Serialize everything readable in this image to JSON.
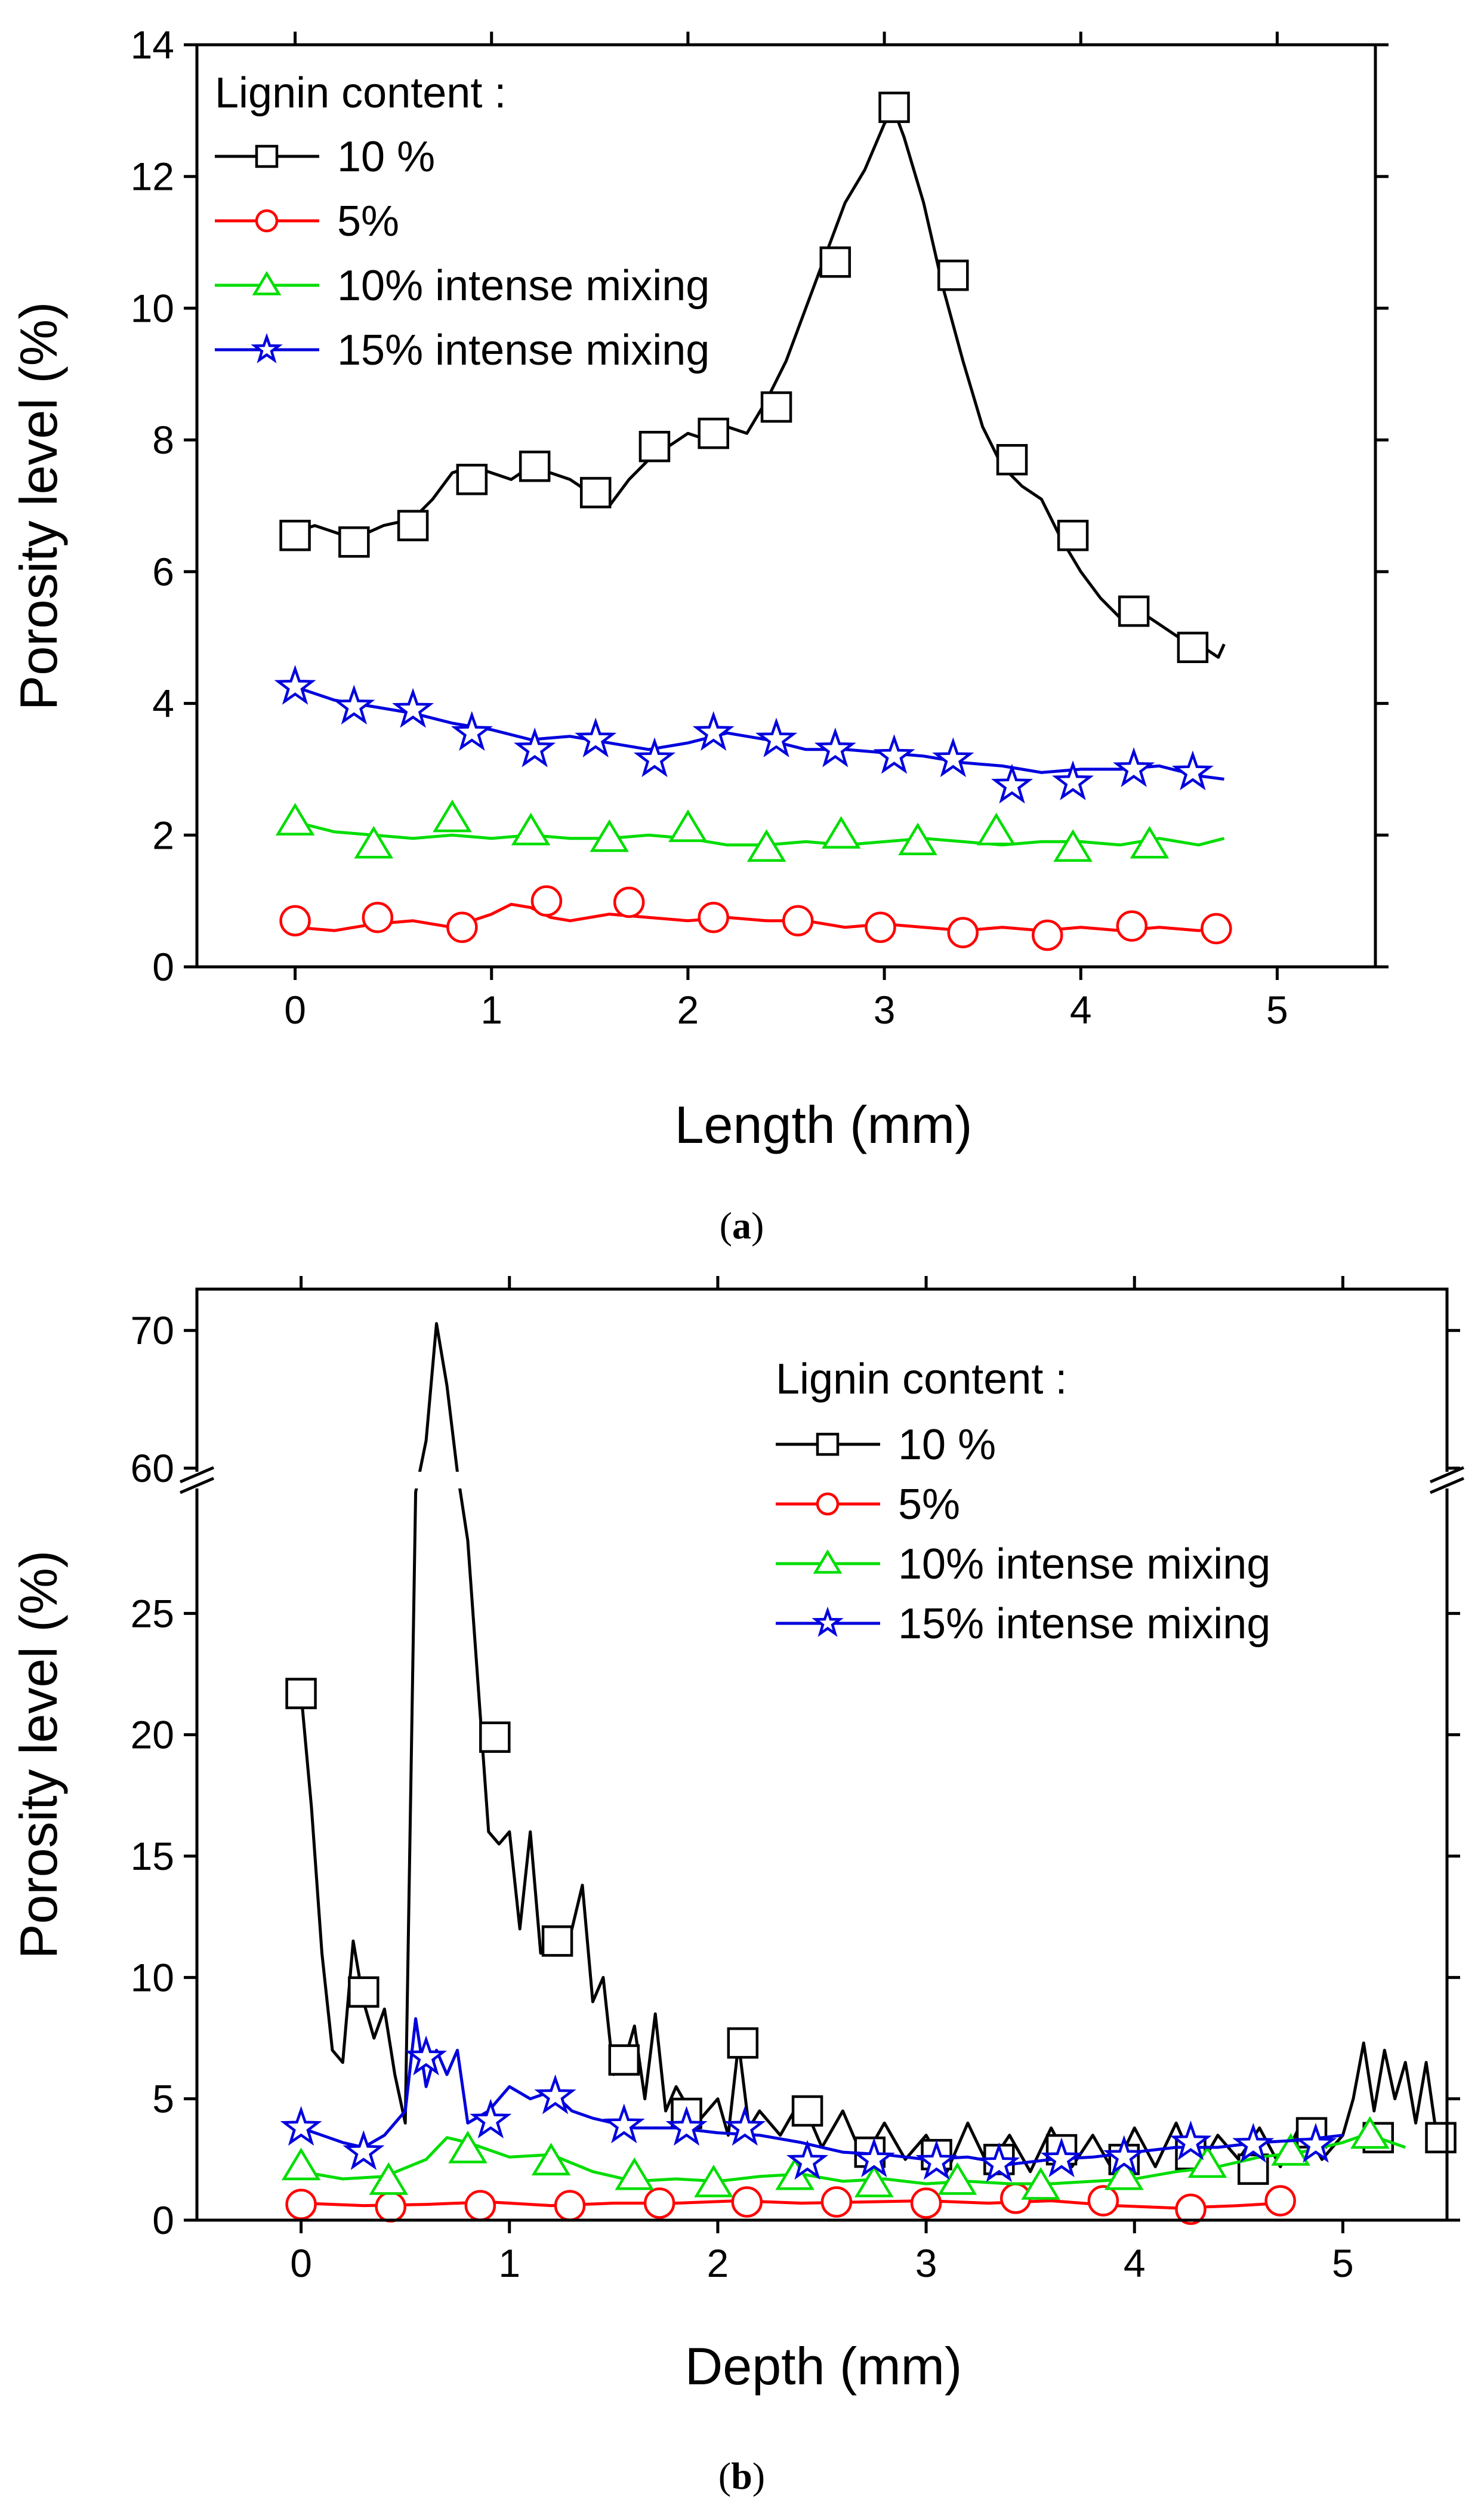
{
  "chart_data": [
    {
      "type": "line",
      "panel_label": "(a)",
      "caption_open": "(",
      "caption_letter": "a",
      "caption_close": ")",
      "xlabel": "Length (mm)",
      "ylabel": "Porosity level (%)",
      "xlim": [
        -0.5,
        5.5
      ],
      "ylim": [
        0,
        14
      ],
      "xticks": [
        0,
        1,
        2,
        3,
        4,
        5
      ],
      "yticks": [
        0,
        2,
        4,
        6,
        8,
        10,
        12,
        14
      ],
      "legend_title": "Lignin content :",
      "legend_position": "top-left",
      "series": [
        {
          "name": "10 %",
          "color": "#000000",
          "marker": "square",
          "x": [
            0,
            0.1,
            0.2,
            0.3,
            0.45,
            0.6,
            0.7,
            0.8,
            0.9,
            1.0,
            1.1,
            1.2,
            1.3,
            1.4,
            1.5,
            1.6,
            1.7,
            1.8,
            1.9,
            2.0,
            2.1,
            2.2,
            2.3,
            2.4,
            2.5,
            2.6,
            2.7,
            2.8,
            2.9,
            3.0,
            3.05,
            3.1,
            3.2,
            3.3,
            3.4,
            3.5,
            3.6,
            3.7,
            3.8,
            3.9,
            4.0,
            4.1,
            4.2,
            4.3,
            4.4,
            4.5,
            4.6,
            4.7,
            4.73
          ],
          "y": [
            6.6,
            6.7,
            6.6,
            6.5,
            6.7,
            6.8,
            7.1,
            7.5,
            7.6,
            7.5,
            7.4,
            7.6,
            7.5,
            7.4,
            7.2,
            7.0,
            7.4,
            7.7,
            7.9,
            8.1,
            8.0,
            8.2,
            8.1,
            8.6,
            9.2,
            10.0,
            10.8,
            11.6,
            12.1,
            12.8,
            13.0,
            12.6,
            11.6,
            10.3,
            9.2,
            8.2,
            7.6,
            7.3,
            7.1,
            6.5,
            6.0,
            5.6,
            5.3,
            5.4,
            5.2,
            5.0,
            4.9,
            4.7,
            4.9
          ],
          "marker_x": [
            0,
            0.3,
            0.6,
            0.9,
            1.22,
            1.53,
            1.83,
            2.13,
            2.45,
            2.75,
            3.05,
            3.35,
            3.65,
            3.96,
            4.27,
            4.57
          ],
          "marker_y": [
            6.55,
            6.45,
            6.7,
            7.4,
            7.6,
            7.2,
            7.9,
            8.1,
            8.5,
            10.7,
            13.05,
            10.5,
            7.7,
            6.55,
            5.4,
            4.85
          ]
        },
        {
          "name": "5%",
          "color": "#ff0000",
          "marker": "circle",
          "x": [
            0,
            0.2,
            0.4,
            0.6,
            0.8,
            1.0,
            1.1,
            1.2,
            1.3,
            1.4,
            1.6,
            1.8,
            2.0,
            2.2,
            2.4,
            2.6,
            2.8,
            3.0,
            3.2,
            3.4,
            3.6,
            3.8,
            4.0,
            4.2,
            4.4,
            4.6,
            4.73
          ],
          "y": [
            0.6,
            0.55,
            0.65,
            0.7,
            0.6,
            0.8,
            0.95,
            0.9,
            0.75,
            0.7,
            0.8,
            0.75,
            0.7,
            0.75,
            0.7,
            0.7,
            0.6,
            0.65,
            0.6,
            0.55,
            0.6,
            0.55,
            0.6,
            0.55,
            0.6,
            0.55,
            0.6
          ],
          "marker_x": [
            0,
            0.42,
            0.85,
            1.28,
            1.7,
            2.13,
            2.56,
            2.98,
            3.4,
            3.83,
            4.26,
            4.69
          ],
          "marker_y": [
            0.7,
            0.75,
            0.6,
            1.0,
            0.98,
            0.75,
            0.7,
            0.6,
            0.52,
            0.48,
            0.62,
            0.58
          ]
        },
        {
          "name": "10% intense mixing",
          "color": "#00dd00",
          "marker": "triangle",
          "x": [
            0,
            0.2,
            0.4,
            0.6,
            0.8,
            1.0,
            1.2,
            1.4,
            1.6,
            1.8,
            2.0,
            2.2,
            2.4,
            2.6,
            2.8,
            3.0,
            3.2,
            3.4,
            3.6,
            3.8,
            4.0,
            4.2,
            4.4,
            4.6,
            4.73
          ],
          "y": [
            2.2,
            2.05,
            2.0,
            1.95,
            2.0,
            1.95,
            2.0,
            1.95,
            1.95,
            2.0,
            1.95,
            1.85,
            1.85,
            1.9,
            1.85,
            1.9,
            1.95,
            1.9,
            1.85,
            1.9,
            1.9,
            1.85,
            1.95,
            1.85,
            1.95
          ],
          "marker_x": [
            0,
            0.4,
            0.8,
            1.2,
            1.6,
            2.0,
            2.4,
            2.78,
            3.17,
            3.57,
            3.96,
            4.35
          ],
          "marker_y": [
            2.2,
            1.85,
            2.25,
            2.05,
            1.95,
            2.1,
            1.8,
            2.0,
            1.9,
            2.05,
            1.8,
            1.85
          ]
        },
        {
          "name": "15% intense mixing",
          "color": "#0000dd",
          "marker": "star",
          "x": [
            0,
            0.2,
            0.4,
            0.6,
            0.8,
            1.0,
            1.2,
            1.4,
            1.6,
            1.8,
            2.0,
            2.2,
            2.4,
            2.6,
            2.8,
            3.0,
            3.2,
            3.4,
            3.6,
            3.8,
            4.0,
            4.2,
            4.4,
            4.6,
            4.73
          ],
          "y": [
            4.25,
            4.05,
            3.95,
            3.85,
            3.7,
            3.6,
            3.45,
            3.5,
            3.4,
            3.3,
            3.4,
            3.55,
            3.45,
            3.3,
            3.3,
            3.25,
            3.2,
            3.1,
            3.05,
            2.95,
            3.0,
            3.0,
            3.05,
            2.9,
            2.85
          ],
          "marker_x": [
            0,
            0.3,
            0.6,
            0.9,
            1.22,
            1.53,
            1.83,
            2.13,
            2.45,
            2.75,
            3.05,
            3.35,
            3.65,
            3.96,
            4.27,
            4.57
          ],
          "marker_y": [
            4.25,
            3.95,
            3.9,
            3.55,
            3.3,
            3.45,
            3.15,
            3.55,
            3.45,
            3.3,
            3.2,
            3.15,
            2.75,
            2.8,
            3.0,
            2.95
          ]
        }
      ]
    },
    {
      "type": "line",
      "panel_label": "(b)",
      "caption_open": "(",
      "caption_letter": "b",
      "caption_close": ")",
      "xlabel": "Depth (mm)",
      "ylabel": "Porosity level (%)",
      "xlim": [
        -0.5,
        5.5
      ],
      "ylim": [
        0,
        73
      ],
      "axis_break": [
        30,
        60
      ],
      "xticks": [
        0,
        1,
        2,
        3,
        4,
        5
      ],
      "yticks": [
        0,
        5,
        10,
        15,
        20,
        25,
        60,
        70
      ],
      "legend_title": "Lignin content :",
      "legend_position": "top-right",
      "series": [
        {
          "name": "10 %",
          "color": "#000000",
          "marker": "square",
          "x": [
            0,
            0.05,
            0.1,
            0.15,
            0.2,
            0.25,
            0.3,
            0.35,
            0.4,
            0.45,
            0.5,
            0.55,
            0.6,
            0.65,
            0.7,
            0.75,
            0.8,
            0.85,
            0.9,
            0.95,
            1.0,
            1.05,
            1.1,
            1.15,
            1.2,
            1.25,
            1.3,
            1.35,
            1.4,
            1.45,
            1.5,
            1.55,
            1.6,
            1.65,
            1.7,
            1.75,
            1.8,
            1.9,
            2.0,
            2.05,
            2.1,
            2.15,
            2.2,
            2.3,
            2.4,
            2.5,
            2.6,
            2.7,
            2.8,
            2.9,
            3.0,
            3.1,
            3.2,
            3.3,
            3.4,
            3.5,
            3.6,
            3.7,
            3.8,
            3.9,
            4.0,
            4.1,
            4.2,
            4.3,
            4.4,
            4.5,
            4.6,
            4.7,
            4.8,
            4.9,
            5.0,
            5.05,
            5.1,
            5.15,
            5.2,
            5.25,
            5.3,
            5.35,
            5.4,
            5.45
          ],
          "y": [
            21.7,
            17.0,
            11.0,
            7.0,
            6.5,
            11.5,
            9.0,
            7.5,
            8.7,
            6.0,
            4.0,
            30.0,
            62.0,
            70.5,
            66.0,
            55.0,
            28.0,
            22.0,
            16.0,
            15.5,
            16.0,
            12.0,
            16.0,
            11.0,
            12.0,
            11.5,
            12.0,
            13.8,
            9.0,
            10.0,
            6.0,
            6.5,
            8.0,
            5.0,
            8.5,
            4.5,
            5.5,
            4.0,
            5.0,
            3.5,
            7.3,
            3.8,
            4.5,
            3.5,
            5.0,
            3.0,
            4.5,
            2.5,
            4.0,
            2.5,
            3.5,
            2.0,
            4.0,
            2.2,
            3.5,
            2.0,
            3.8,
            2.2,
            3.5,
            2.0,
            3.8,
            2.2,
            4.0,
            2.0,
            3.5,
            2.5,
            3.8,
            2.2,
            4.0,
            2.5,
            3.5,
            5.0,
            7.3,
            4.5,
            7.0,
            5.0,
            6.5,
            4.0,
            6.5,
            3.5
          ],
          "marker_x": [
            0,
            0.3,
            0.93,
            1.23,
            1.55,
            1.85,
            2.12,
            2.43,
            2.73,
            3.05,
            3.35,
            3.65,
            3.95,
            4.27,
            4.57,
            4.85,
            5.17,
            5.47
          ],
          "marker_y": [
            21.7,
            9.4,
            19.9,
            11.5,
            6.6,
            4.4,
            7.3,
            4.5,
            2.8,
            2.7,
            2.5,
            2.9,
            2.5,
            2.7,
            2.1,
            3.6,
            3.4,
            3.4
          ]
        },
        {
          "name": "5%",
          "color": "#ff0000",
          "marker": "circle",
          "x": [
            0,
            0.3,
            0.6,
            0.9,
            1.2,
            1.5,
            1.8,
            2.1,
            2.4,
            2.7,
            3.0,
            3.3,
            3.6,
            3.9,
            4.2,
            4.5,
            4.7
          ],
          "y": [
            0.7,
            0.6,
            0.65,
            0.75,
            0.6,
            0.7,
            0.7,
            0.8,
            0.7,
            0.75,
            0.8,
            0.7,
            0.8,
            0.6,
            0.5,
            0.6,
            0.7
          ],
          "marker_x": [
            0,
            0.43,
            0.86,
            1.29,
            1.72,
            2.14,
            2.57,
            3.0,
            3.43,
            3.85,
            4.27,
            4.7
          ],
          "marker_y": [
            0.65,
            0.55,
            0.6,
            0.6,
            0.7,
            0.75,
            0.75,
            0.7,
            0.9,
            0.8,
            0.45,
            0.8
          ]
        },
        {
          "name": "10% intense mixing",
          "color": "#00dd00",
          "marker": "triangle",
          "x": [
            0,
            0.2,
            0.4,
            0.6,
            0.7,
            0.8,
            1.0,
            1.2,
            1.4,
            1.6,
            1.8,
            2.0,
            2.2,
            2.4,
            2.6,
            2.8,
            3.0,
            3.2,
            3.4,
            3.6,
            3.8,
            4.0,
            4.2,
            4.4,
            4.6,
            4.8,
            5.0,
            5.1,
            5.2,
            5.3
          ],
          "y": [
            2.0,
            1.7,
            1.8,
            2.5,
            3.4,
            3.2,
            2.6,
            2.7,
            2.0,
            1.6,
            1.7,
            1.6,
            1.8,
            1.9,
            1.6,
            1.7,
            1.5,
            1.6,
            1.5,
            1.5,
            1.6,
            1.7,
            2.0,
            2.2,
            2.6,
            2.8,
            3.2,
            3.5,
            3.3,
            3.0
          ],
          "marker_x": [
            0,
            0.42,
            0.8,
            1.2,
            1.6,
            1.98,
            2.37,
            2.75,
            3.15,
            3.55,
            3.95,
            4.35,
            4.75,
            5.13
          ],
          "marker_y": [
            2.2,
            1.6,
            2.9,
            2.4,
            1.8,
            1.5,
            1.8,
            1.5,
            1.6,
            1.4,
            1.8,
            2.3,
            2.8,
            3.5
          ]
        },
        {
          "name": "15% intense mixing",
          "color": "#0000dd",
          "marker": "star",
          "x": [
            0,
            0.1,
            0.2,
            0.3,
            0.4,
            0.5,
            0.55,
            0.6,
            0.65,
            0.7,
            0.75,
            0.8,
            0.9,
            1.0,
            1.1,
            1.2,
            1.3,
            1.4,
            1.5,
            1.6,
            1.8,
            2.0,
            2.2,
            2.4,
            2.6,
            2.8,
            3.0,
            3.2,
            3.4,
            3.6,
            3.8,
            4.0,
            4.2,
            4.4,
            4.6,
            4.8,
            5.0
          ],
          "y": [
            3.8,
            3.5,
            3.2,
            3.0,
            3.5,
            4.5,
            8.3,
            5.5,
            7.0,
            6.0,
            7.0,
            4.0,
            4.5,
            5.5,
            5.0,
            5.3,
            4.5,
            4.2,
            4.0,
            3.8,
            3.8,
            3.6,
            3.5,
            3.2,
            2.8,
            2.7,
            2.5,
            2.6,
            2.3,
            2.5,
            2.6,
            2.8,
            3.0,
            3.0,
            3.2,
            3.3,
            3.5
          ],
          "marker_x": [
            0,
            0.3,
            0.6,
            0.91,
            1.22,
            1.55,
            1.85,
            2.13,
            2.43,
            2.75,
            3.05,
            3.35,
            3.65,
            3.95,
            4.27,
            4.57,
            4.87
          ],
          "marker_y": [
            3.8,
            2.8,
            6.7,
            4.1,
            5.1,
            3.9,
            3.8,
            3.8,
            2.4,
            2.5,
            2.4,
            2.3,
            2.5,
            2.6,
            3.2,
            3.1,
            3.1
          ]
        }
      ]
    }
  ]
}
